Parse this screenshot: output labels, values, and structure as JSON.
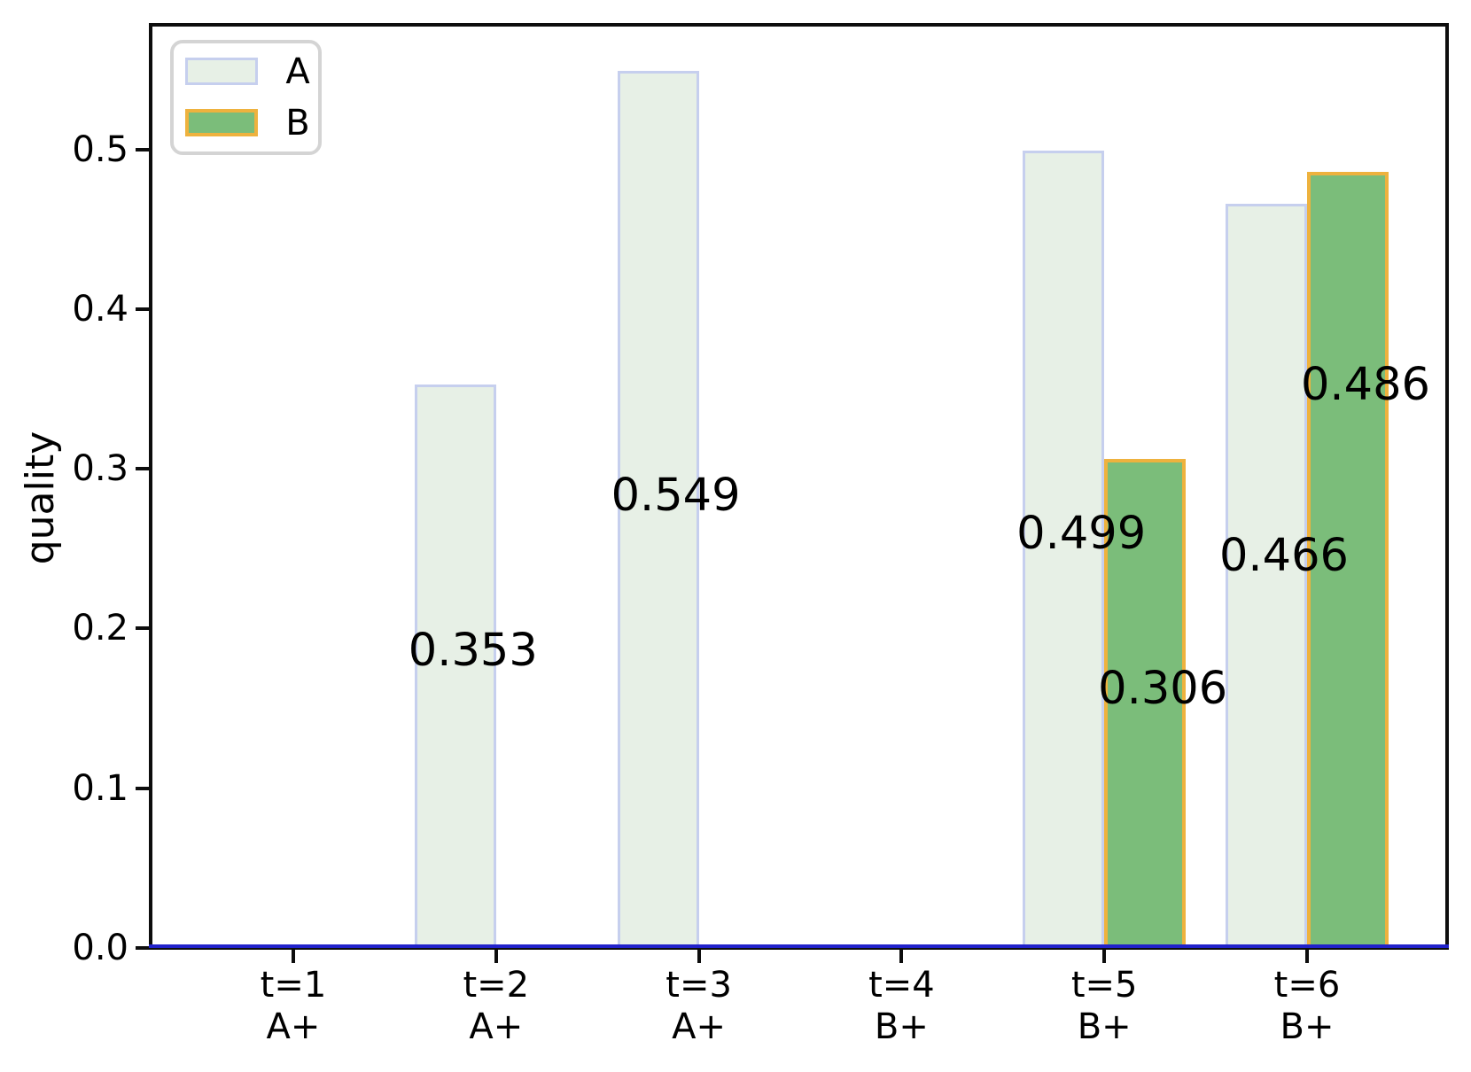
{
  "chart_data": {
    "type": "bar",
    "title": "",
    "xlabel": "",
    "ylabel": "quality",
    "categories": [
      {
        "time": "t=1",
        "group": "A+"
      },
      {
        "time": "t=2",
        "group": "A+"
      },
      {
        "time": "t=3",
        "group": "A+"
      },
      {
        "time": "t=4",
        "group": "B+"
      },
      {
        "time": "t=5",
        "group": "B+"
      },
      {
        "time": "t=6",
        "group": "B+"
      }
    ],
    "series": [
      {
        "name": "A",
        "values": [
          0,
          0.353,
          0.549,
          0,
          0.499,
          0.466
        ],
        "bar_labels": [
          "",
          "0.353",
          "0.549",
          "",
          "0.499",
          "0.466"
        ],
        "label_y_data": [
          null,
          0.186,
          0.283,
          null,
          0.259,
          0.245
        ],
        "fill_color": "#e7f0e6",
        "edge_color": "#c6cfee"
      },
      {
        "name": "B",
        "values": [
          0,
          0,
          0,
          0,
          0.306,
          0.486
        ],
        "bar_labels": [
          "",
          "",
          "",
          "",
          "0.306",
          "0.486"
        ],
        "label_y_data": [
          null,
          null,
          null,
          null,
          0.162,
          0.352
        ],
        "fill_color": "#7bbd7a",
        "edge_color": "#eeb23e"
      }
    ],
    "y_tick_labels": [
      "0.0",
      "0.1",
      "0.2",
      "0.3",
      "0.4",
      "0.5"
    ],
    "y_tick_values": [
      0.0,
      0.1,
      0.2,
      0.3,
      0.4,
      0.5
    ],
    "ylim": [
      0,
      0.578
    ],
    "grid": false,
    "legend": {
      "position": "upper left",
      "entries": [
        "A",
        "B"
      ]
    },
    "baseline_color": "#2122cb",
    "axis_color": "#0d0d0d",
    "text_color": "#000000"
  }
}
